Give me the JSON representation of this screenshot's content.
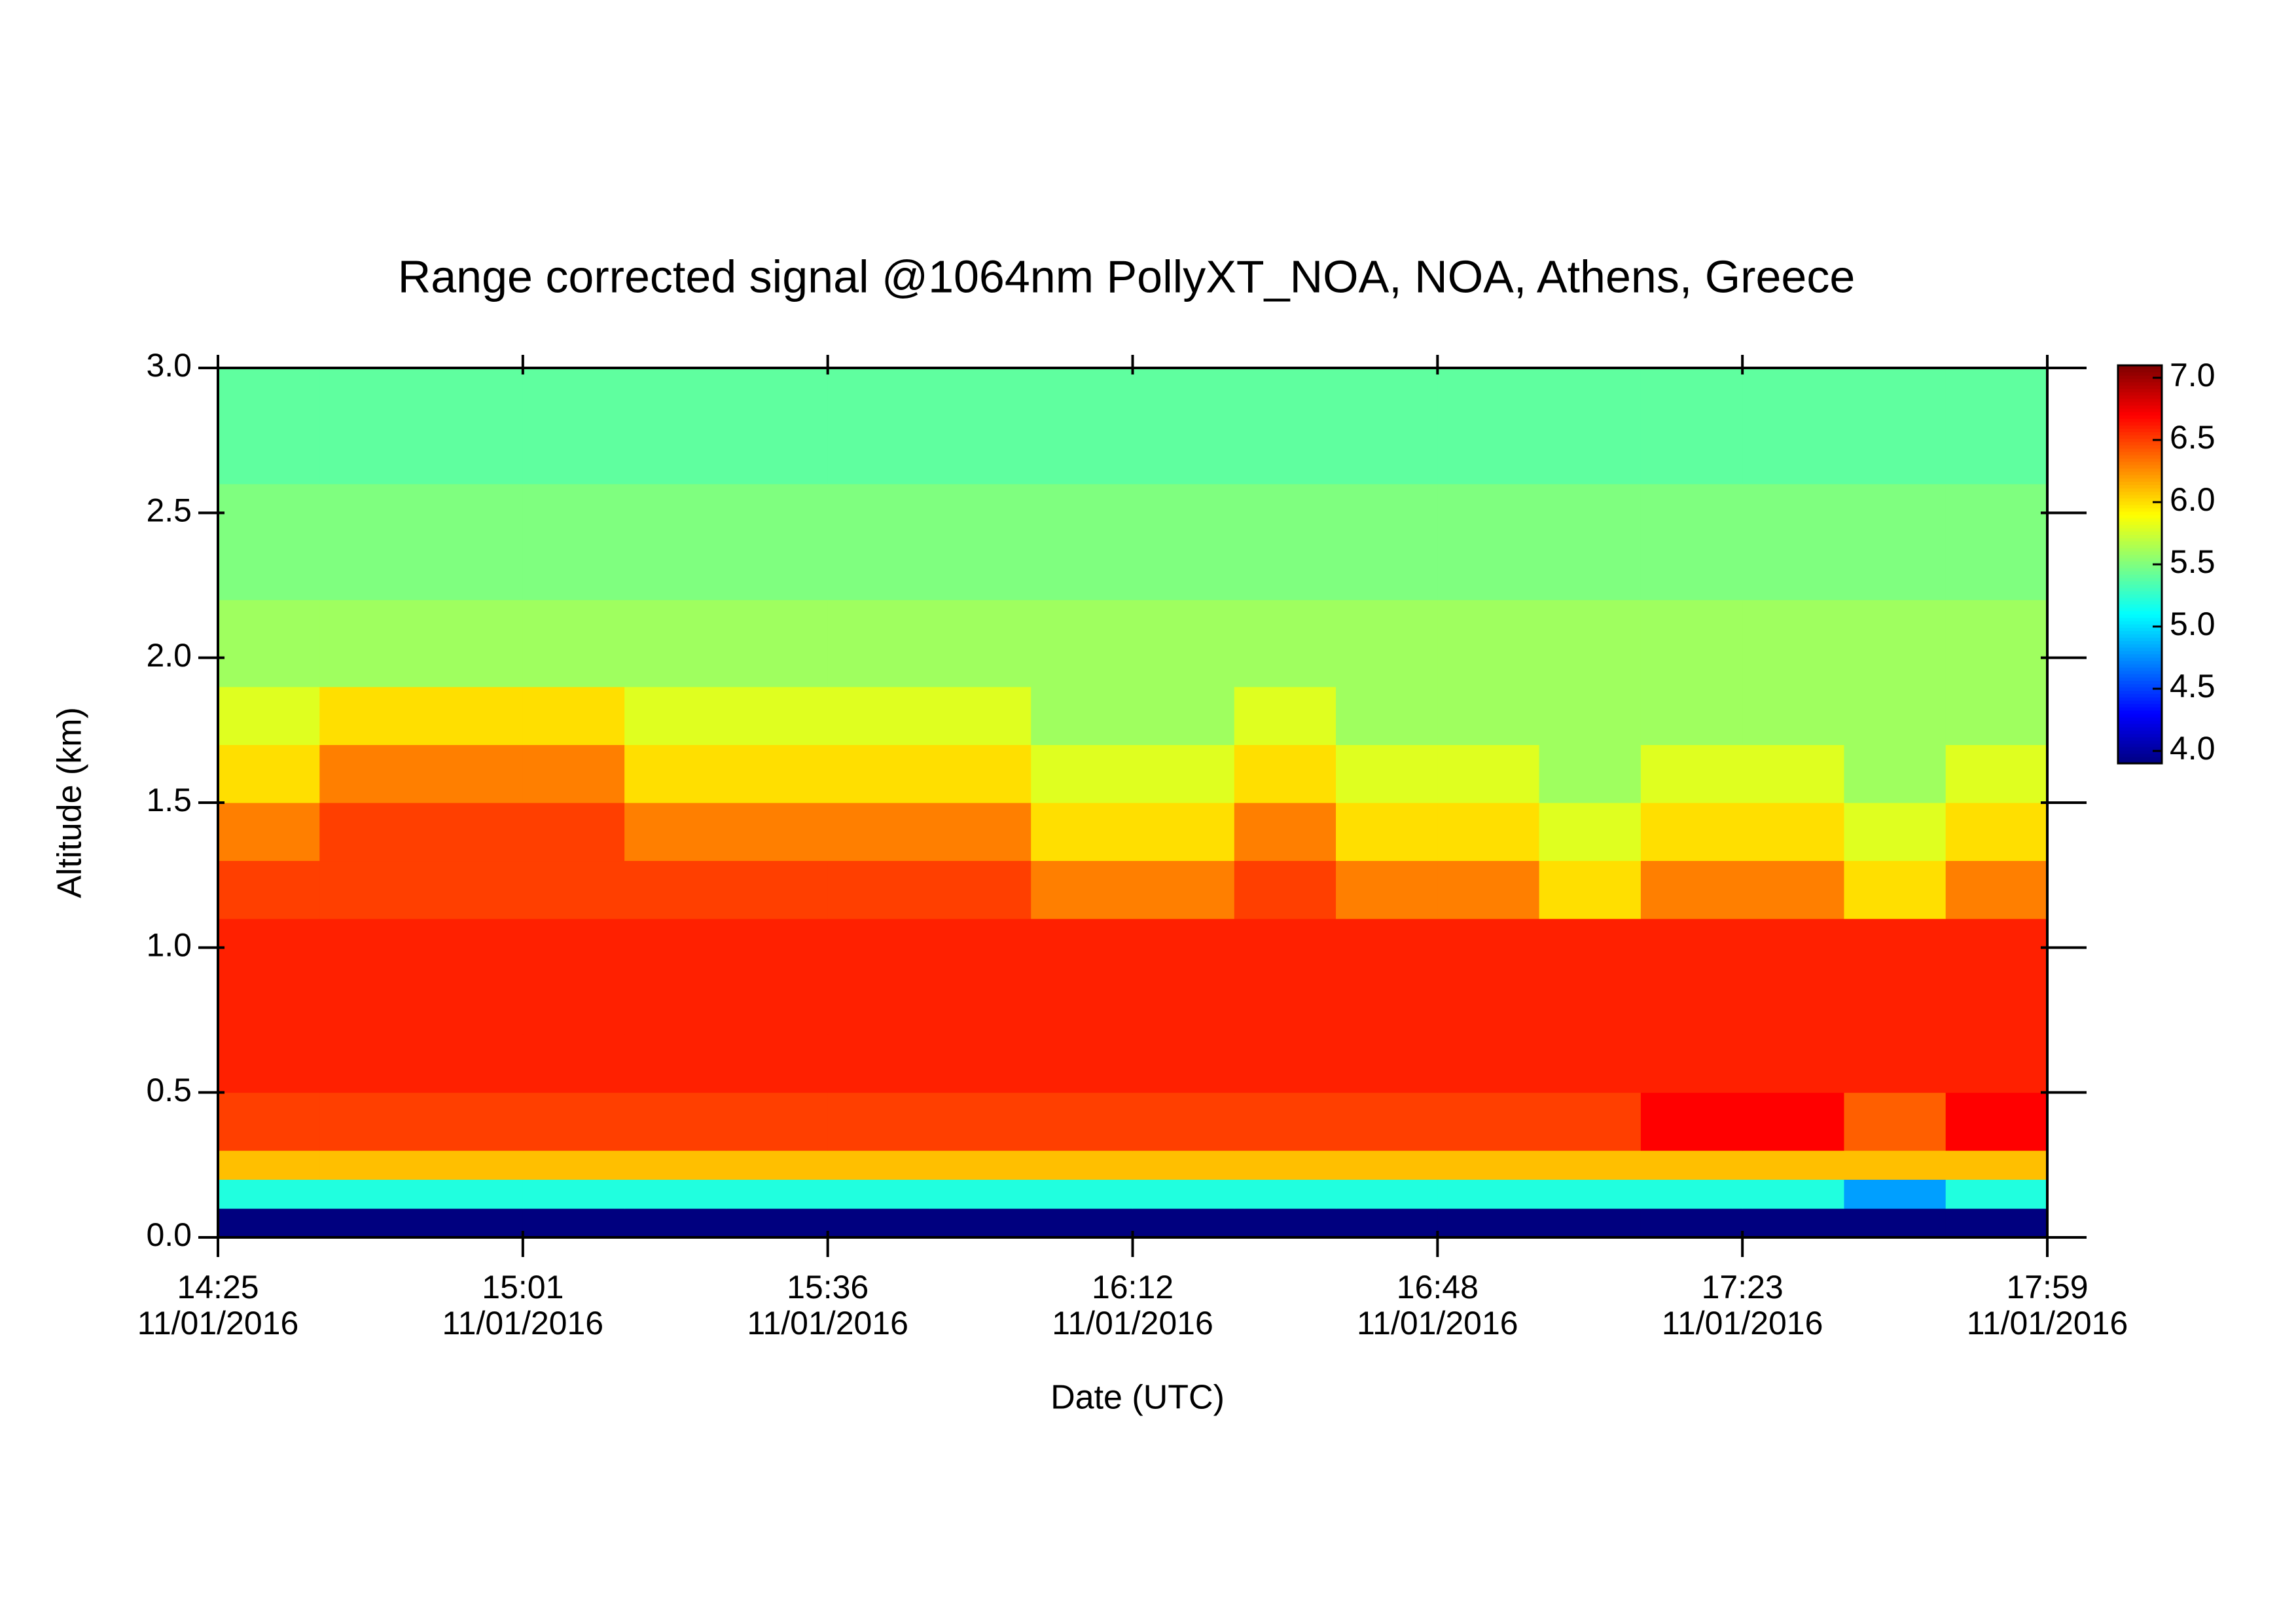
{
  "chart_data": {
    "type": "heatmap",
    "title": "Range corrected signal @1064nm  PollyXT_NOA, NOA, Athens, Greece",
    "xlabel": "Date (UTC)",
    "ylabel": "Altitude (km)",
    "x_tick_labels": [
      {
        "time": "14:25",
        "date": "11/01/2016"
      },
      {
        "time": "15:01",
        "date": "11/01/2016"
      },
      {
        "time": "15:36",
        "date": "11/01/2016"
      },
      {
        "time": "16:12",
        "date": "11/01/2016"
      },
      {
        "time": "16:48",
        "date": "11/01/2016"
      },
      {
        "time": "17:23",
        "date": "11/01/2016"
      },
      {
        "time": "17:59",
        "date": "11/01/2016"
      }
    ],
    "ylim": [
      0,
      3
    ],
    "yticks": [
      {
        "value": 0,
        "label": "0.0"
      },
      0.5,
      {
        "value": 1,
        "label": "1.0"
      },
      1.5,
      {
        "value": 2,
        "label": "2.0"
      },
      2.5,
      {
        "value": 3,
        "label": "3.0"
      }
    ],
    "y_bins": [
      0,
      0.1,
      0.2,
      0.3,
      0.5,
      0.7,
      0.9,
      1.1,
      1.3,
      1.5,
      1.7,
      1.9,
      2.2,
      2.6,
      3.0
    ],
    "values": [
      [
        3.9,
        3.9,
        3.9,
        3.9,
        3.9,
        3.9,
        3.9,
        3.9,
        3.9,
        3.9,
        3.9,
        3.9,
        3.9,
        3.9,
        3.9,
        3.9,
        3.9,
        3.9
      ],
      [
        5.2,
        5.2,
        5.2,
        5.2,
        5.2,
        5.2,
        5.2,
        5.2,
        5.2,
        5.2,
        5.2,
        5.2,
        5.2,
        5.2,
        5.2,
        5.2,
        4.8,
        5.2
      ],
      [
        6.1,
        6.1,
        6.1,
        6.1,
        6.1,
        6.1,
        6.1,
        6.1,
        6.1,
        6.1,
        6.1,
        6.1,
        6.1,
        6.1,
        6.1,
        6.1,
        6.1,
        6.1
      ],
      [
        6.5,
        6.5,
        6.5,
        6.5,
        6.5,
        6.5,
        6.5,
        6.5,
        6.5,
        6.5,
        6.5,
        6.5,
        6.5,
        6.5,
        6.7,
        6.7,
        6.4,
        6.7
      ],
      [
        6.6,
        6.6,
        6.6,
        6.6,
        6.6,
        6.6,
        6.6,
        6.6,
        6.6,
        6.6,
        6.6,
        6.6,
        6.6,
        6.6,
        6.6,
        6.6,
        6.6,
        6.6
      ],
      [
        6.6,
        6.6,
        6.6,
        6.6,
        6.6,
        6.6,
        6.6,
        6.6,
        6.6,
        6.6,
        6.6,
        6.6,
        6.6,
        6.6,
        6.6,
        6.6,
        6.6,
        6.6
      ],
      [
        6.6,
        6.6,
        6.6,
        6.6,
        6.6,
        6.6,
        6.6,
        6.6,
        6.6,
        6.6,
        6.6,
        6.6,
        6.6,
        6.6,
        6.6,
        6.6,
        6.6,
        6.6
      ],
      [
        6.5,
        6.5,
        6.5,
        6.5,
        6.5,
        6.5,
        6.5,
        6.5,
        6.3,
        6.3,
        6.5,
        6.3,
        6.3,
        6.0,
        6.3,
        6.3,
        6.0,
        6.3
      ],
      [
        6.3,
        6.5,
        6.5,
        6.5,
        6.3,
        6.3,
        6.3,
        6.3,
        6.0,
        6.0,
        6.3,
        6.0,
        6.0,
        5.8,
        6.0,
        6.0,
        5.8,
        6.0
      ],
      [
        6.0,
        6.3,
        6.3,
        6.3,
        6.0,
        6.0,
        6.0,
        6.0,
        5.8,
        5.8,
        6.0,
        5.8,
        5.8,
        5.6,
        5.8,
        5.8,
        5.6,
        5.8
      ],
      [
        5.8,
        6.0,
        6.0,
        6.0,
        5.8,
        5.8,
        5.8,
        5.8,
        5.6,
        5.6,
        5.8,
        5.6,
        5.6,
        5.6,
        5.6,
        5.6,
        5.6,
        5.6
      ],
      [
        5.6,
        5.6,
        5.6,
        5.6,
        5.6,
        5.6,
        5.6,
        5.6,
        5.6,
        5.6,
        5.6,
        5.6,
        5.6,
        5.6,
        5.6,
        5.6,
        5.6,
        5.6
      ],
      [
        5.5,
        5.5,
        5.5,
        5.5,
        5.5,
        5.5,
        5.5,
        5.5,
        5.5,
        5.5,
        5.5,
        5.5,
        5.5,
        5.5,
        5.5,
        5.5,
        5.5,
        5.5
      ],
      [
        5.4,
        5.4,
        5.4,
        5.4,
        5.4,
        5.4,
        5.4,
        5.4,
        5.4,
        5.4,
        5.4,
        5.4,
        5.4,
        5.4,
        5.4,
        5.4,
        5.4,
        5.4
      ]
    ],
    "colormap": [
      "#00007f",
      "#0000ff",
      "#007fff",
      "#00ffff",
      "#7fff7f",
      "#ffff00",
      "#ff7f00",
      "#ff0000",
      "#7f0000"
    ],
    "clim": [
      3.9,
      7.1
    ],
    "cticks": [
      {
        "value": 4,
        "label": "4.0"
      },
      4.5,
      {
        "value": 5,
        "label": "5.0"
      },
      5.5,
      {
        "value": 6,
        "label": "6.0"
      },
      6.5,
      {
        "value": 7,
        "label": "7.0"
      }
    ]
  }
}
